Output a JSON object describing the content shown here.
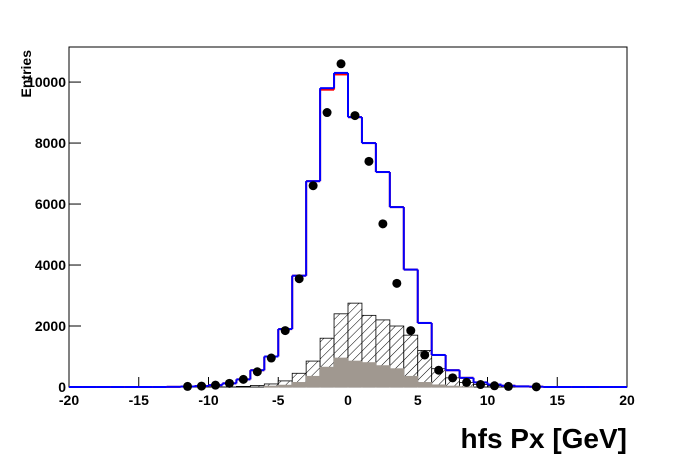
{
  "chart_data": {
    "type": "histogram",
    "x_label": "hfs Px [GeV]",
    "y_label": "Entries",
    "bins": [
      -20,
      -19,
      -18,
      -17,
      -16,
      -15,
      -14,
      -13,
      -12,
      -11,
      -10,
      -9,
      -8,
      -7,
      -6,
      -5,
      -4,
      -3,
      -2,
      -1,
      0,
      1,
      2,
      3,
      4,
      5,
      6,
      7,
      8,
      9,
      10,
      11,
      12,
      13,
      14,
      15,
      16,
      17,
      18,
      19,
      20
    ],
    "xlim": [
      -20,
      20
    ],
    "ylim": [
      0,
      11150
    ],
    "xticks": [
      -20,
      -15,
      -10,
      -5,
      0,
      5,
      10,
      15,
      20
    ],
    "yticks": [
      0,
      2000,
      4000,
      6000,
      8000,
      10000
    ],
    "series": [
      {
        "style": "hatch",
        "color": "#000000",
        "values": [
          0,
          0,
          0,
          0,
          0,
          0,
          0,
          0,
          0,
          0,
          0,
          0,
          20,
          50,
          100,
          200,
          450,
          850,
          1600,
          2400,
          2750,
          2350,
          2200,
          2000,
          1700,
          1200,
          600,
          300,
          150,
          80,
          40,
          20,
          0,
          0,
          0,
          0,
          0,
          0,
          0,
          0
        ]
      },
      {
        "style": "fill",
        "color": "#a09890",
        "values": [
          0,
          0,
          0,
          0,
          0,
          0,
          0,
          0,
          0,
          0,
          0,
          0,
          0,
          0,
          30,
          60,
          150,
          350,
          650,
          950,
          850,
          800,
          700,
          600,
          350,
          150,
          70,
          30,
          10,
          0,
          0,
          0,
          0,
          0,
          0,
          0,
          0,
          0,
          0,
          0
        ]
      },
      {
        "style": "step",
        "color": "#ff0000",
        "values": [
          0,
          0,
          0,
          0,
          0,
          0,
          0,
          5,
          15,
          30,
          60,
          120,
          250,
          550,
          1000,
          1900,
          3650,
          6750,
          9750,
          10250,
          8850,
          8000,
          7050,
          5900,
          3850,
          2100,
          1050,
          550,
          300,
          150,
          80,
          40,
          20,
          10,
          0,
          0,
          0,
          0,
          0,
          0
        ]
      },
      {
        "style": "step",
        "color": "#0000ff",
        "values": [
          0,
          0,
          0,
          0,
          0,
          0,
          0,
          5,
          15,
          30,
          60,
          120,
          250,
          550,
          1000,
          1900,
          3650,
          6750,
          9800,
          10300,
          8850,
          8000,
          7050,
          5900,
          3850,
          2100,
          1050,
          550,
          300,
          150,
          80,
          40,
          20,
          10,
          0,
          0,
          0,
          0,
          0,
          0
        ]
      }
    ],
    "points": {
      "color": "#000000",
      "x": [
        -11.5,
        -10.5,
        -9.5,
        -8.5,
        -7.5,
        -6.5,
        -5.5,
        -4.5,
        -3.5,
        -2.5,
        -1.5,
        -0.5,
        0.5,
        1.5,
        2.5,
        3.5,
        4.5,
        5.5,
        6.5,
        7.5,
        8.5,
        9.5,
        10.5,
        11.5,
        13.5
      ],
      "values": [
        20,
        30,
        60,
        120,
        250,
        500,
        950,
        1850,
        3550,
        6600,
        9000,
        10600,
        8900,
        7400,
        5350,
        3400,
        1850,
        1050,
        550,
        300,
        150,
        80,
        40,
        20,
        5
      ]
    }
  }
}
